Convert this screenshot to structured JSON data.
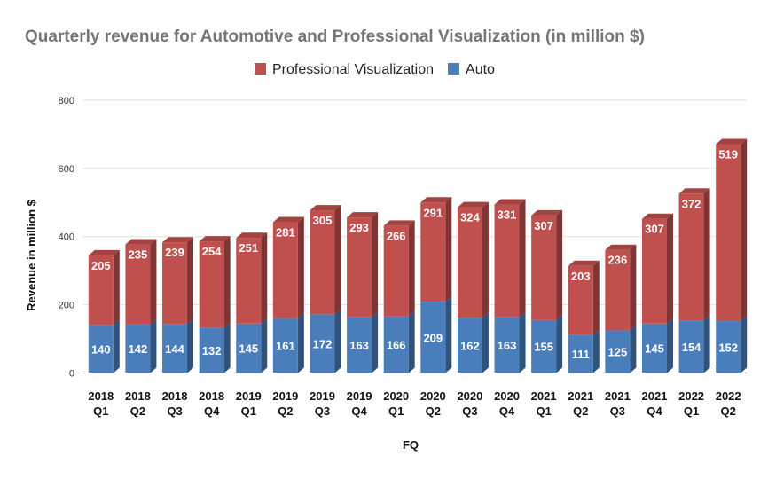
{
  "chart_data": {
    "type": "bar",
    "stacked": true,
    "title": "Quarterly revenue for Automotive and Professional Visualization (in million $)",
    "xlabel": "FQ",
    "ylabel": "Revenue in million $",
    "ylim": [
      0,
      800
    ],
    "yticks": [
      0,
      200,
      400,
      600,
      800
    ],
    "grid": true,
    "legend_position": "top-center",
    "categories": [
      [
        "2018",
        "Q1"
      ],
      [
        "2018",
        "Q2"
      ],
      [
        "2018",
        "Q3"
      ],
      [
        "2018",
        "Q4"
      ],
      [
        "2019",
        "Q1"
      ],
      [
        "2019",
        "Q2"
      ],
      [
        "2019",
        "Q3"
      ],
      [
        "2019",
        "Q4"
      ],
      [
        "2020",
        "Q1"
      ],
      [
        "2020",
        "Q2"
      ],
      [
        "2020",
        "Q3"
      ],
      [
        "2020",
        "Q4"
      ],
      [
        "2021",
        "Q1"
      ],
      [
        "2021",
        "Q2"
      ],
      [
        "2021",
        "Q3"
      ],
      [
        "2021",
        "Q4"
      ],
      [
        "2022",
        "Q1"
      ],
      [
        "2022",
        "Q2"
      ]
    ],
    "legend_order": [
      1,
      0
    ],
    "series": [
      {
        "name": "Auto",
        "color": "#4a7ebb",
        "values": [
          140,
          142,
          144,
          132,
          145,
          161,
          172,
          163,
          166,
          209,
          162,
          163,
          155,
          111,
          125,
          145,
          154,
          152
        ]
      },
      {
        "name": "Professional Visualization",
        "color": "#c0504d",
        "values": [
          205,
          235,
          239,
          254,
          251,
          281,
          305,
          293,
          266,
          291,
          324,
          331,
          307,
          203,
          236,
          307,
          372,
          519
        ]
      }
    ]
  }
}
